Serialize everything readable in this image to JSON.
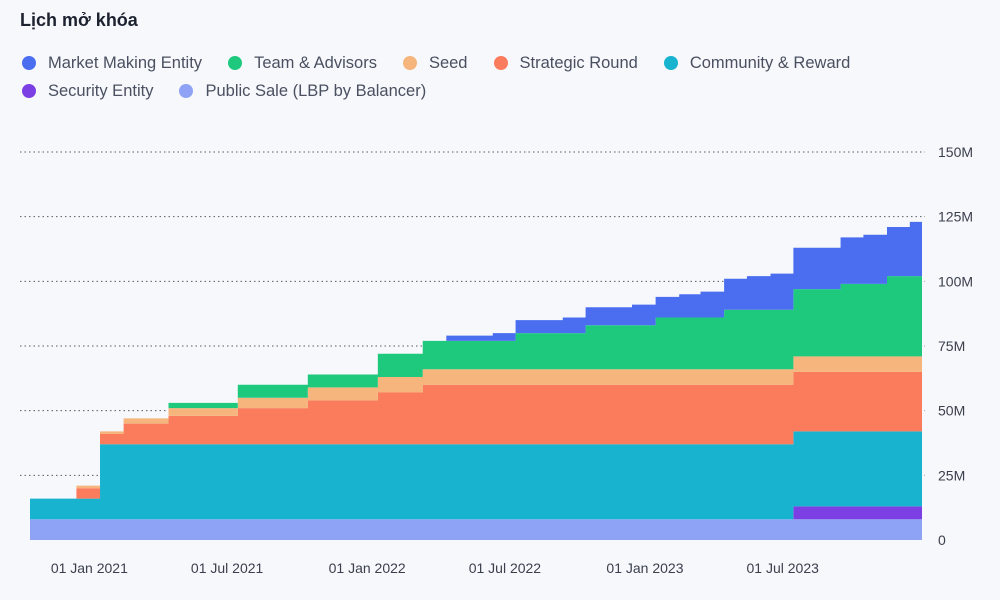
{
  "chart_data": {
    "type": "area",
    "stacked": true,
    "step": true,
    "title": "Lịch mở khóa",
    "ylim": [
      0,
      150
    ],
    "yticks": [
      "0",
      "25M",
      "50M",
      "75M",
      "100M",
      "125M",
      "150M"
    ],
    "ytick_values": [
      0,
      25,
      50,
      75,
      100,
      125,
      150
    ],
    "xticks": [
      "01 Jan 2021",
      "01 Jul 2021",
      "01 Jan 2022",
      "01 Jul 2022",
      "01 Jan 2023",
      "01 Jul 2023"
    ],
    "xtick_dates": [
      "2021-01-01",
      "2021-07-01",
      "2022-01-01",
      "2022-07-01",
      "2023-01-01",
      "2023-07-01"
    ],
    "xlim": [
      "2020-10-15",
      "2023-12-31"
    ],
    "grid": "horizontal-dotted",
    "legend_position": "top",
    "dates": [
      "2020-10-15",
      "2020-11-15",
      "2020-12-15",
      "2021-01-15",
      "2021-02-15",
      "2021-03-15",
      "2021-04-15",
      "2021-05-15",
      "2021-06-15",
      "2021-07-15",
      "2021-08-15",
      "2021-09-15",
      "2021-10-15",
      "2021-11-15",
      "2021-12-15",
      "2022-01-15",
      "2022-02-15",
      "2022-03-15",
      "2022-04-15",
      "2022-05-15",
      "2022-06-15",
      "2022-07-15",
      "2022-08-15",
      "2022-09-15",
      "2022-10-15",
      "2022-11-15",
      "2022-12-15",
      "2023-01-15",
      "2023-02-15",
      "2023-03-15",
      "2023-04-15",
      "2023-05-15",
      "2023-06-15",
      "2023-07-15",
      "2023-08-15",
      "2023-09-15",
      "2023-10-15",
      "2023-11-15",
      "2023-12-15"
    ],
    "series": [
      {
        "name": "Public Sale (LBP by Balancer)",
        "color": "#8ea3f5",
        "values": [
          8,
          8,
          8,
          8,
          8,
          8,
          8,
          8,
          8,
          8,
          8,
          8,
          8,
          8,
          8,
          8,
          8,
          8,
          8,
          8,
          8,
          8,
          8,
          8,
          8,
          8,
          8,
          8,
          8,
          8,
          8,
          8,
          8,
          8,
          8,
          8,
          8,
          8,
          8
        ]
      },
      {
        "name": "Security Entity",
        "color": "#7b3fe4",
        "values": [
          0,
          0,
          0,
          0,
          0,
          0,
          0,
          0,
          0,
          0,
          0,
          0,
          0,
          0,
          0,
          0,
          0,
          0,
          0,
          0,
          0,
          0,
          0,
          0,
          0,
          0,
          0,
          0,
          0,
          0,
          0,
          0,
          0,
          5,
          5,
          5,
          5,
          5,
          5
        ]
      },
      {
        "name": "Community & Reward",
        "color": "#17b3cf",
        "values": [
          8,
          8,
          8,
          29,
          29,
          29,
          29,
          29,
          29,
          29,
          29,
          29,
          29,
          29,
          29,
          29,
          29,
          29,
          29,
          29,
          29,
          29,
          29,
          29,
          29,
          29,
          29,
          29,
          29,
          29,
          29,
          29,
          29,
          29,
          29,
          29,
          29,
          29,
          29
        ]
      },
      {
        "name": "Strategic Round",
        "color": "#fb7b5d",
        "values": [
          0,
          0,
          4,
          4,
          8,
          8,
          11,
          11,
          11,
          14,
          14,
          14,
          17,
          17,
          17,
          20,
          20,
          23,
          23,
          23,
          23,
          23,
          23,
          23,
          23,
          23,
          23,
          23,
          23,
          23,
          23,
          23,
          23,
          23,
          23,
          23,
          23,
          23,
          23
        ]
      },
      {
        "name": "Seed",
        "color": "#f5b57c",
        "values": [
          0,
          0,
          1,
          1,
          2,
          2,
          3,
          3,
          3,
          4,
          4,
          4,
          5,
          5,
          5,
          6,
          6,
          6,
          6,
          6,
          6,
          6,
          6,
          6,
          6,
          6,
          6,
          6,
          6,
          6,
          6,
          6,
          6,
          6,
          6,
          6,
          6,
          6,
          6
        ]
      },
      {
        "name": "Team & Advisors",
        "color": "#1ec97e",
        "values": [
          0,
          0,
          0,
          0,
          0,
          0,
          2,
          2,
          2,
          5,
          5,
          5,
          5,
          5,
          5,
          9,
          9,
          11,
          11,
          11,
          11,
          14,
          14,
          14,
          17,
          17,
          17,
          20,
          20,
          20,
          23,
          23,
          23,
          26,
          26,
          28,
          28,
          31,
          31
        ]
      },
      {
        "name": "Market Making Entity",
        "color": "#4b6ef0",
        "values": [
          0,
          0,
          0,
          0,
          0,
          0,
          0,
          0,
          0,
          0,
          0,
          0,
          0,
          0,
          0,
          0,
          0,
          0,
          2,
          2,
          3,
          5,
          5,
          6,
          7,
          7,
          8,
          8,
          9,
          10,
          12,
          13,
          14,
          16,
          16,
          18,
          19,
          19,
          21
        ]
      }
    ]
  },
  "legend": [
    {
      "name": "Market Making Entity",
      "color": "#4b6ef0"
    },
    {
      "name": "Team & Advisors",
      "color": "#1ec97e"
    },
    {
      "name": "Seed",
      "color": "#f5b57c"
    },
    {
      "name": "Strategic Round",
      "color": "#fb7b5d"
    },
    {
      "name": "Community & Reward",
      "color": "#17b3cf"
    },
    {
      "name": "Security Entity",
      "color": "#7b3fe4"
    },
    {
      "name": "Public Sale (LBP by Balancer)",
      "color": "#8ea3f5"
    }
  ]
}
